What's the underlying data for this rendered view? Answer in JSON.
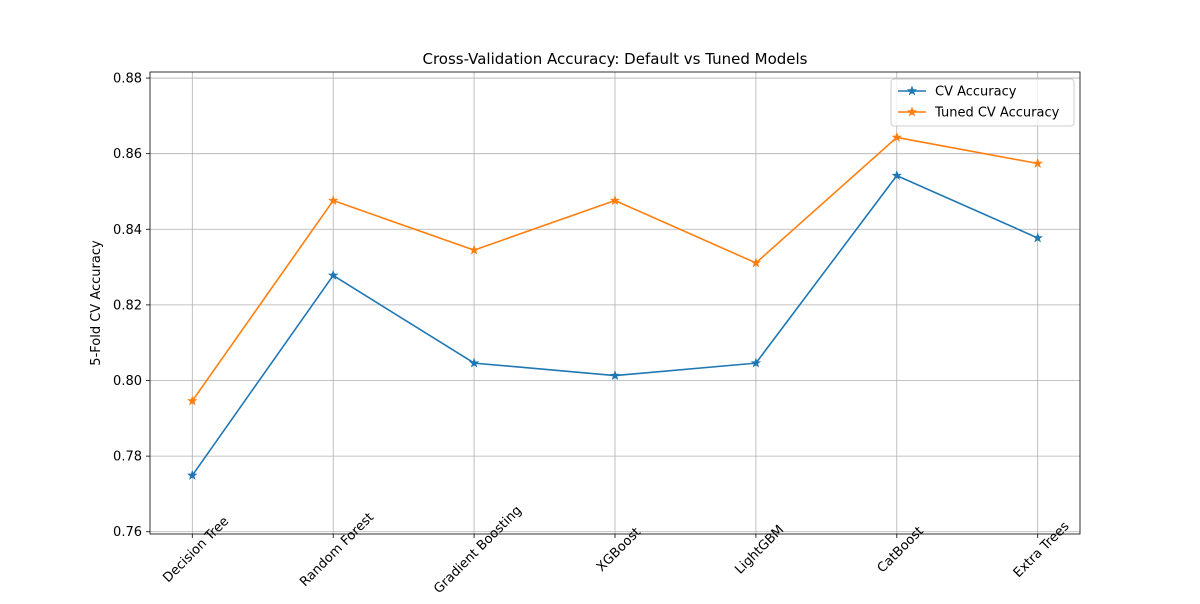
{
  "chart_data": {
    "type": "line",
    "title": "Cross-Validation Accuracy: Default vs Tuned Models",
    "xlabel": "",
    "ylabel": "5-Fold CV Accuracy",
    "categories": [
      "Decision Tree",
      "Random Forest",
      "Gradient Boosting",
      "XGBoost",
      "LightGBM",
      "CatBoost",
      "Extra Trees"
    ],
    "series": [
      {
        "name": "CV Accuracy",
        "color": "#1f77b4",
        "marker": "star",
        "values": [
          0.7749,
          0.8278,
          0.8046,
          0.8013,
          0.8046,
          0.8542,
          0.8377
        ]
      },
      {
        "name": "Tuned CV Accuracy",
        "color": "#ff7f0e",
        "marker": "star",
        "values": [
          0.7946,
          0.8476,
          0.8345,
          0.8476,
          0.8311,
          0.8643,
          0.8574
        ]
      }
    ],
    "ylim": [
      0.7594,
      0.8816
    ],
    "yticks": [
      0.76,
      0.78,
      0.8,
      0.82,
      0.84,
      0.86,
      0.88
    ],
    "ytick_labels": [
      "0.76",
      "0.78",
      "0.80",
      "0.82",
      "0.84",
      "0.86",
      "0.88"
    ],
    "xtick_rotation": 45,
    "grid": true,
    "legend_position": "top-right"
  }
}
